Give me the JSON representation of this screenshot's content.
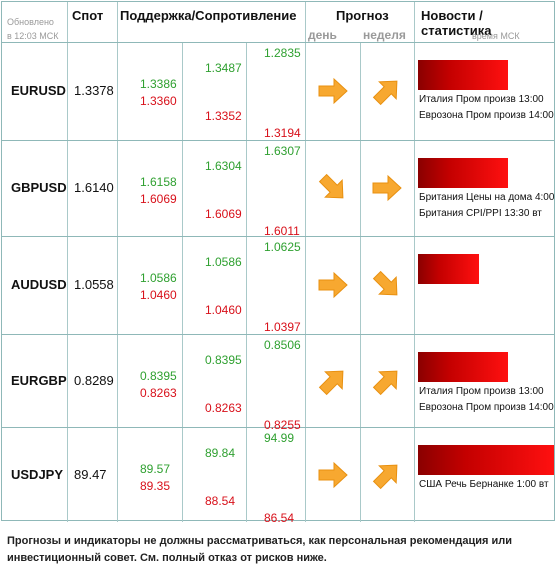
{
  "header": {
    "updated_label": "Обновлено",
    "updated_time": "в 12:03 МСК",
    "spot": "Спот",
    "support_resistance": "Поддержка/Сопротивление",
    "forecast": "Прогноз",
    "day": "день",
    "week": "неделя",
    "news": "Новости / статистика",
    "news_time": "время МСК"
  },
  "rows": [
    {
      "pair": "EURUSD",
      "spot": "1.3378",
      "levels": [
        "1.3386",
        "1.3360",
        "1.3487",
        "1.3352",
        "1.2835",
        "1.3194"
      ],
      "day": "right",
      "week": "up-right",
      "news": [
        "Италия Пром произв 13:00",
        "Еврозона Пром произв 14:00"
      ],
      "strength": 0.53
    },
    {
      "pair": "GBPUSD",
      "spot": "1.6140",
      "levels": [
        "1.6158",
        "1.6069",
        "1.6304",
        "1.6069",
        "1.6307",
        "1.6011"
      ],
      "day": "down-right",
      "week": "right",
      "news": [
        "Британия Цены на дома 4:00",
        "Британия CPI/PPI 13:30 вт"
      ],
      "strength": 0.53
    },
    {
      "pair": "AUDUSD",
      "spot": "1.0558",
      "levels": [
        "1.0586",
        "1.0460",
        "1.0586",
        "1.0460",
        "1.0625",
        "1.0397"
      ],
      "day": "right",
      "week": "down-right",
      "news": [],
      "strength": 0.36
    },
    {
      "pair": "EURGBP",
      "spot": "0.8289",
      "levels": [
        "0.8395",
        "0.8263",
        "0.8395",
        "0.8263",
        "0.8506",
        "0.8255"
      ],
      "day": "up-right",
      "week": "up-right",
      "news": [
        "Италия Пром произв 13:00",
        "Еврозона Пром произв 14:00"
      ],
      "strength": 0.53
    },
    {
      "pair": "USDJPY",
      "spot": "89.47",
      "levels": [
        "89.57",
        "89.35",
        "89.84",
        "88.54",
        "94.99",
        "86.54"
      ],
      "day": "right",
      "week": "up-right",
      "news": [
        "США Речь Бернанке 1:00 вт"
      ],
      "strength": 0.8
    }
  ],
  "colors": {
    "support": "#2fa030",
    "resistance": "#d8101a",
    "arrow": "#f7a830",
    "bar": "#d00000"
  },
  "disclaimer": "Прогнозы и индикаторы не должны рассматриваться, как персональная рекомендация или инвестиционный совет. См. полный отказ от рисков ниже."
}
